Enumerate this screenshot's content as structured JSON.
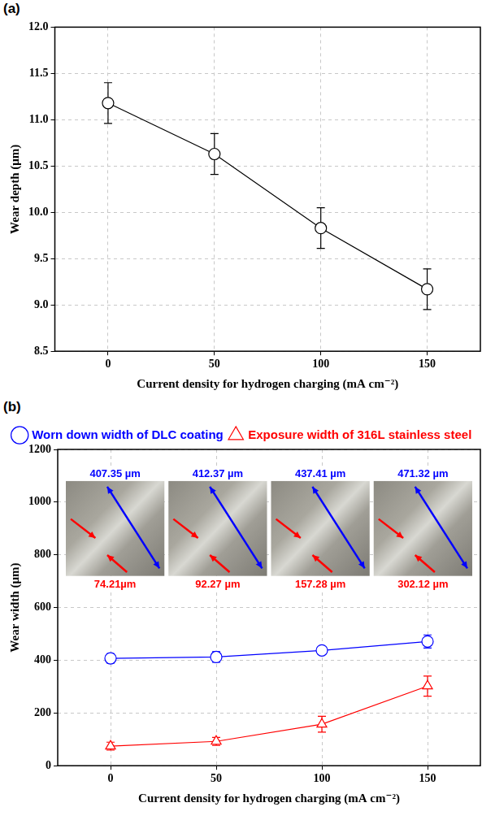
{
  "chart_data": [
    {
      "panel_label": "(a)",
      "type": "line",
      "x": [
        0,
        50,
        100,
        150
      ],
      "xlim": [
        -25,
        175
      ],
      "xticks": [
        0,
        50,
        100,
        150
      ],
      "x_label": "Current density for hydrogen charging (mA cm⁻²)",
      "y_label": "Wear depth (μm)",
      "ylim": [
        8.5,
        12.0
      ],
      "yticks": [
        8.5,
        {
          "value": 9,
          "label": "9.0"
        },
        9.5,
        {
          "value": 10,
          "label": "10.0"
        },
        10.5,
        {
          "value": 11,
          "label": "11.0"
        },
        11.5,
        {
          "value": 12,
          "label": "12.0"
        }
      ],
      "grid": true,
      "values": [
        11.18,
        10.63,
        9.83,
        9.17
      ],
      "errors": [
        0.22,
        0.22,
        0.22,
        0.22
      ],
      "color": "#000000",
      "marker": "circle"
    },
    {
      "panel_label": "(b)",
      "type": "line",
      "x": [
        0,
        50,
        100,
        150
      ],
      "xlim": [
        -25,
        175
      ],
      "xticks": [
        0,
        50,
        100,
        150
      ],
      "x_label": "Current density for hydrogen charging (mA cm⁻²)",
      "y_label": "Wear width (μm)",
      "ylim": [
        0,
        1200
      ],
      "yticks": [
        0,
        200,
        400,
        600,
        800,
        1000,
        1200
      ],
      "grid": true,
      "legend": "top",
      "series": [
        {
          "name": "Worn down width of DLC coating",
          "color": "#0000ff",
          "marker": "circle",
          "values": [
            407.35,
            412.37,
            437.41,
            471.32
          ],
          "errors": [
            18,
            20,
            12,
            25
          ]
        },
        {
          "name": "Exposure width of 316L stainless steel",
          "color": "#ff0000",
          "marker": "triangle",
          "values": [
            74.21,
            92.27,
            157.28,
            302.12
          ],
          "errors": [
            15,
            15,
            30,
            38
          ]
        }
      ],
      "insets": [
        {
          "top_label": "407.35 µm",
          "bottom_label": "74.21µm"
        },
        {
          "top_label": "412.37 µm",
          "bottom_label": "92.27 µm"
        },
        {
          "top_label": "437.41 µm",
          "bottom_label": "157.28 µm"
        },
        {
          "top_label": "471.32 µm",
          "bottom_label": "302.12 µm"
        }
      ]
    }
  ]
}
